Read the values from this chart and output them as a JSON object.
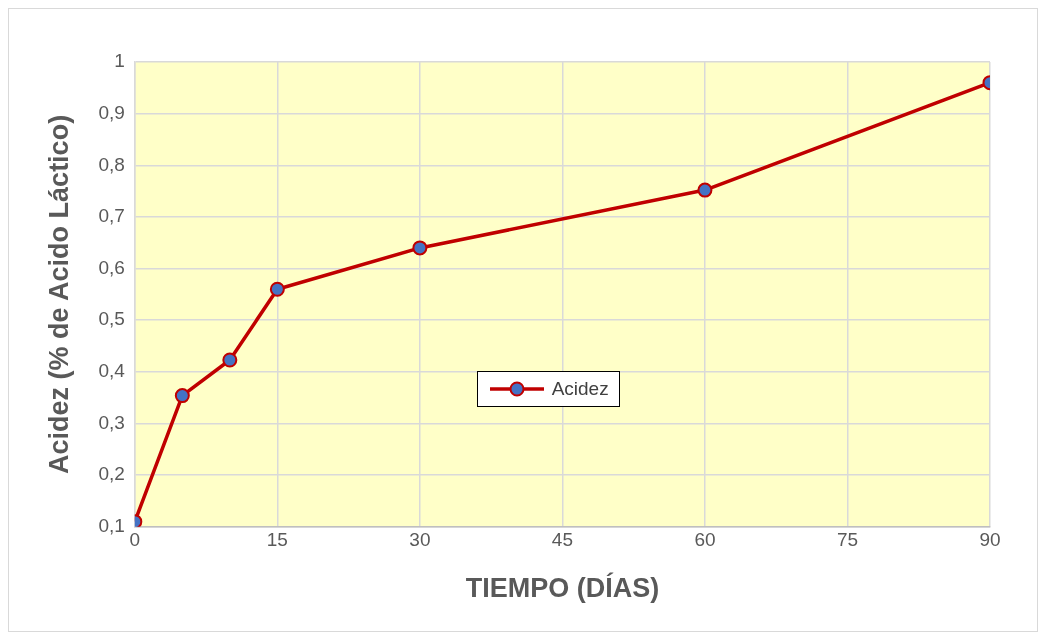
{
  "chart_data": {
    "type": "line",
    "xlabel": "TIEMPO (DÍAS)",
    "ylabel": "Acidez (% de Acido Láctico)",
    "x": [
      0,
      5,
      10,
      15,
      30,
      60,
      90
    ],
    "series": [
      {
        "name": "Acidez",
        "color": "#c00000",
        "values": [
          0.11,
          0.354,
          0.423,
          0.56,
          0.64,
          0.752,
          0.96
        ]
      }
    ],
    "xlim": [
      0,
      90
    ],
    "xticks": [
      0,
      15,
      30,
      45,
      60,
      75,
      90
    ],
    "ylim": [
      0.1,
      1
    ],
    "yticks": [
      {
        "value": 0.1,
        "label": "0,1"
      },
      {
        "value": 0.2,
        "label": "0,2"
      },
      {
        "value": 0.3,
        "label": "0,3"
      },
      {
        "value": 0.4,
        "label": "0,4"
      },
      {
        "value": 0.5,
        "label": "0,5"
      },
      {
        "value": 0.6,
        "label": "0,6"
      },
      {
        "value": 0.7,
        "label": "0,7"
      },
      {
        "value": 0.8,
        "label": "0,8"
      },
      {
        "value": 0.9,
        "label": "0,9"
      },
      {
        "value": 1,
        "label": "1"
      }
    ],
    "grid": true,
    "legend": "center",
    "marker": "circle",
    "line_style": "solid"
  }
}
